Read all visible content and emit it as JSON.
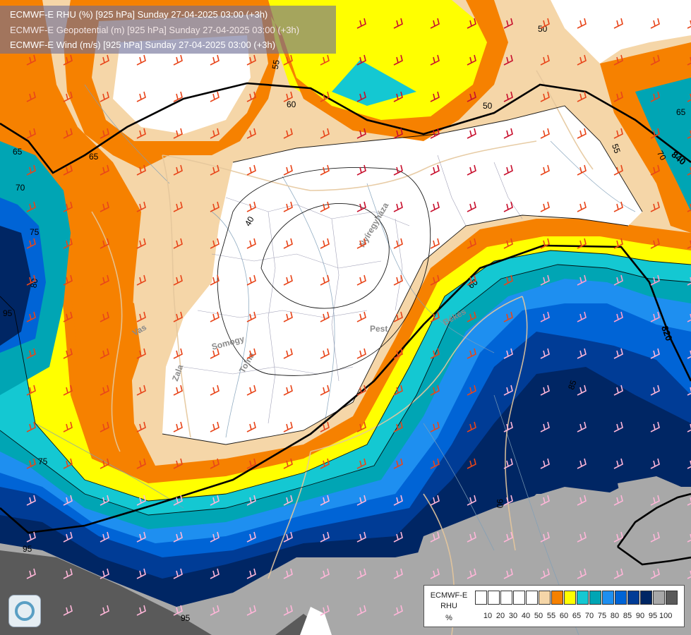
{
  "title": {
    "line1": "ECMWF-E RHU (%) [925 hPa] Sunday 27-04-2025 03:00 (+3h)",
    "line2": "ECMWF-E Geopotential (m) [925 hPa] Sunday 27-04-2025 03:00 (+3h)",
    "line3": "ECMWF-E Wind (m/s) [925 hPa] Sunday 27-04-2025 03:00 (+3h)"
  },
  "legend": {
    "title1": "ECMWF-E",
    "title2": "RHU",
    "unit": "%",
    "colors": [
      "#ffffff",
      "#ffffff",
      "#ffffff",
      "#ffffff",
      "#ffffff",
      "#f5d6a8",
      "#f68100",
      "#ffff00",
      "#14c8d2",
      "#00a5b4",
      "#1e8ff0",
      "#0064d6",
      "#003c96",
      "#002664",
      "#a8a8a8",
      "#5a5a5a"
    ],
    "ticks": [
      "10",
      "20",
      "30",
      "40",
      "50",
      "55",
      "60",
      "65",
      "70",
      "75",
      "80",
      "85",
      "90",
      "95",
      "100"
    ]
  },
  "contour_labels": {
    "rhu": [
      "50",
      "55",
      "60",
      "50",
      "55",
      "65",
      "70",
      "40",
      "65",
      "70",
      "75",
      "80",
      "95",
      "60",
      "85",
      "95",
      "75",
      "90",
      "95",
      "65"
    ],
    "geopotential": [
      "840",
      "820"
    ]
  },
  "place_labels": [
    "Nyíregyháza",
    "Pest",
    "Somogy",
    "Tolna",
    "Vas",
    "Zala",
    "Békés"
  ],
  "icons": {
    "logo": "weather-service-logo-icon",
    "barbs": "wind-barb-icon"
  }
}
